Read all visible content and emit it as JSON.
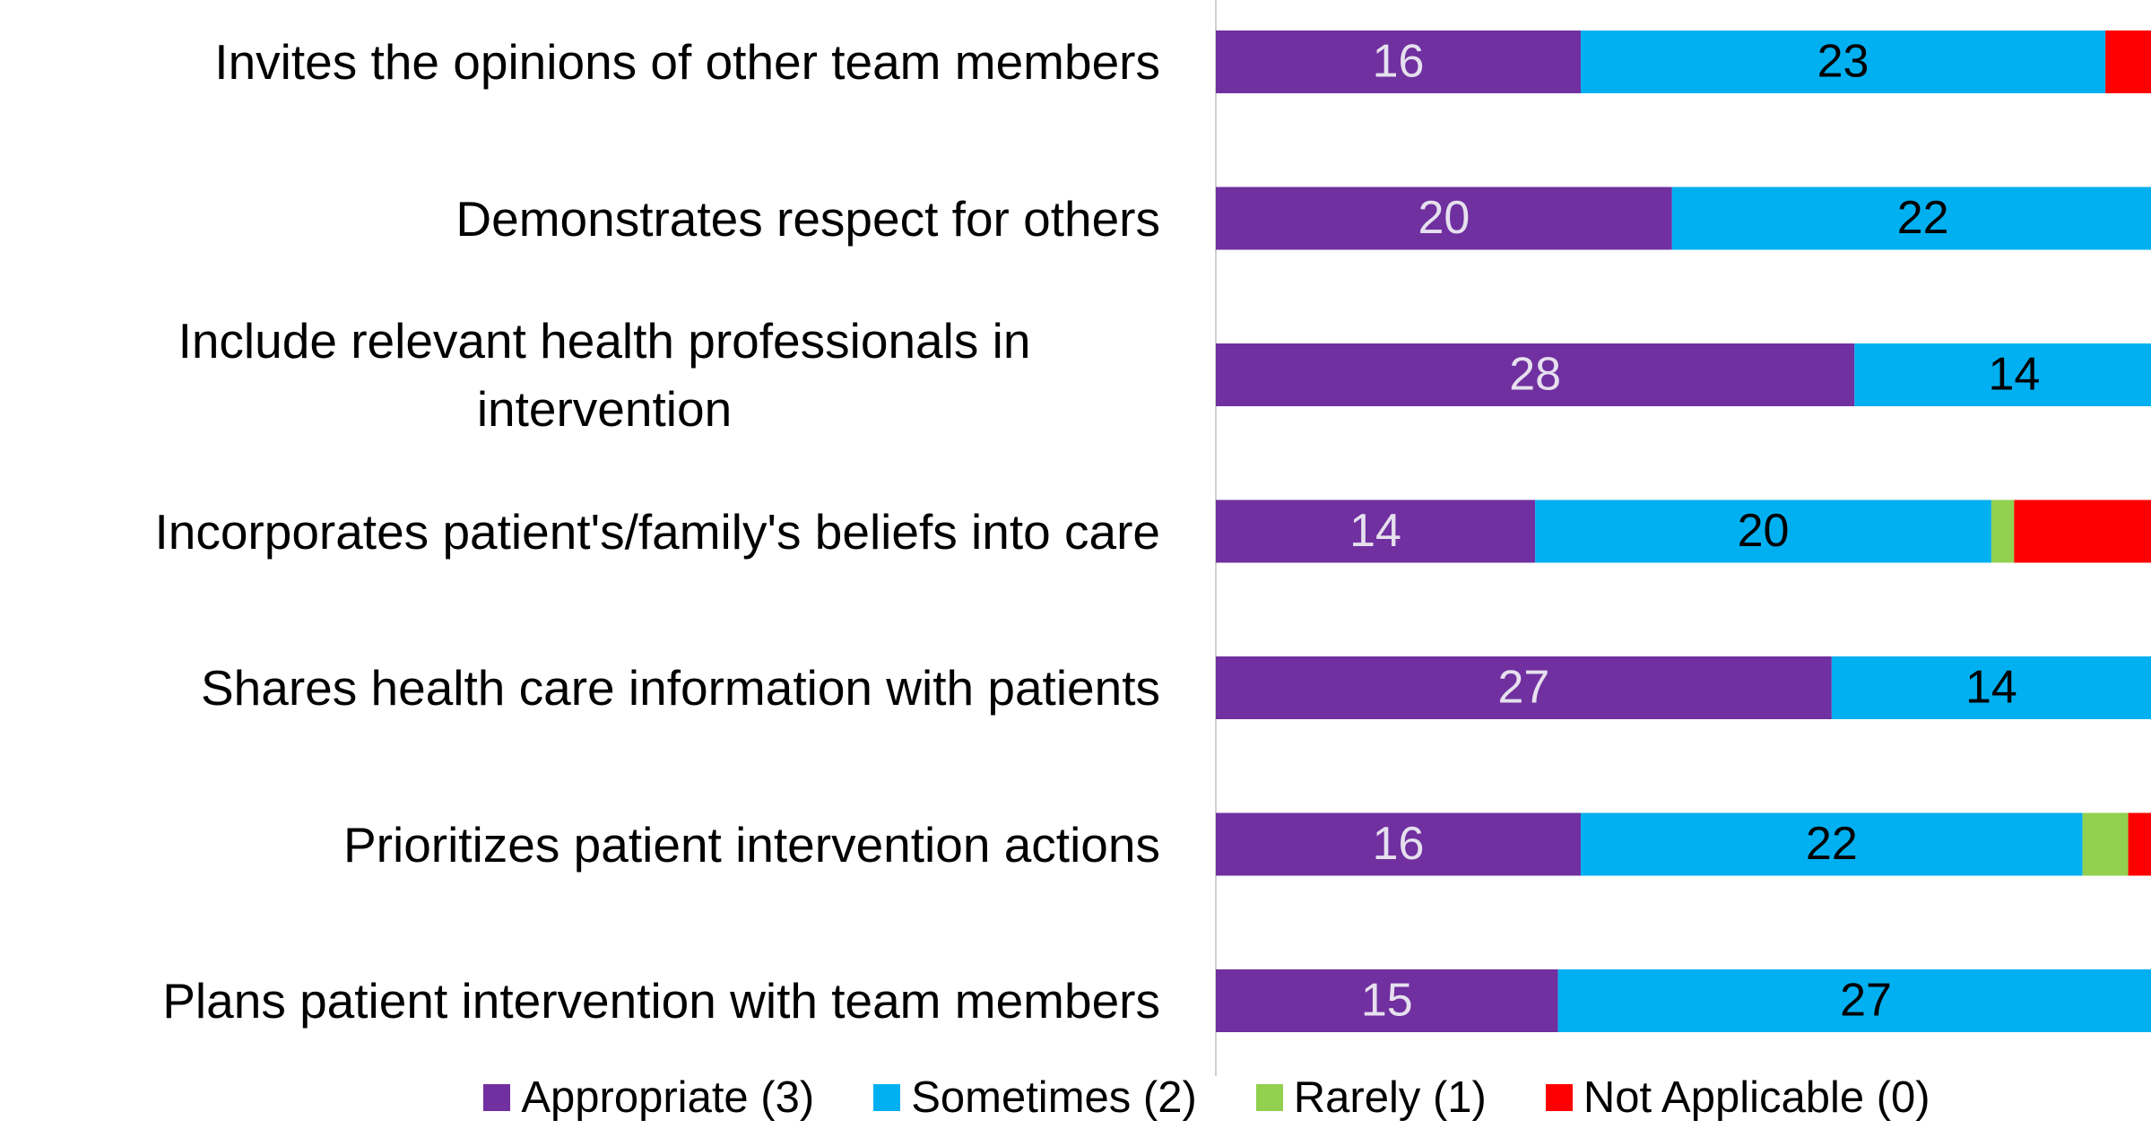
{
  "chart_data": {
    "type": "stacked-bar-horizontal",
    "categories": [
      "Invites the opinions of other team members",
      "Demonstrates respect for others",
      "Include relevant health professionals in intervention",
      "Incorporates patient's/family's beliefs into care",
      "Shares health care information with patients",
      "Prioritizes patient intervention actions",
      "Plans patient intervention with team members"
    ],
    "series": [
      {
        "name": "Appropriate (3)",
        "color": "#7030a0",
        "label_color": "#e6e0ee",
        "data_labels": true,
        "values": [
          16,
          20,
          28,
          14,
          27,
          16,
          15
        ]
      },
      {
        "name": "Sometimes (2)",
        "color": "#00b0f0",
        "label_color": "#000000",
        "data_labels": true,
        "values": [
          23,
          22,
          14,
          20,
          14,
          22,
          27
        ]
      },
      {
        "name": "Rarely (1)",
        "color": "#92d050",
        "label_color": "#000000",
        "data_labels": false,
        "values": [
          0,
          0,
          0,
          1,
          0,
          2,
          0
        ]
      },
      {
        "name": "Not Applicable (0)",
        "color": "#ff0000",
        "label_color": "#000000",
        "data_labels": false,
        "values": [
          3,
          0,
          0,
          7,
          1,
          2,
          0
        ]
      }
    ],
    "xlim": [
      0,
      41
    ],
    "legend": "bottom"
  }
}
